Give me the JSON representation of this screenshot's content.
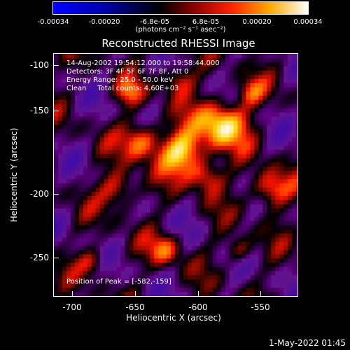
{
  "colorbar": {
    "tick_labels": [
      "-0.00034",
      "-0.00020",
      "-6.8e-05",
      "6.8e-05",
      "0.00020",
      "0.00034"
    ],
    "units_text": "(photons cm⁻² s⁻¹ asec⁻²)",
    "colors": [
      "#0000ff",
      "#000000",
      "#880000",
      "#ff2200",
      "#ffaa00",
      "#ffffff"
    ]
  },
  "title": "Reconstructed RHESSI Image",
  "info": {
    "line1": "14-Aug-2002 19:54:12.000 to 19:58:44.000",
    "line2": "Detectors: 3F 4F 5F 6F 7F 8F, Att 0",
    "line3": "Energy Range: 25.0 - 50.0 keV",
    "line4": "Clean     Total counts: 4.60E+03",
    "peak": "Position of Peak = [-582,-159]"
  },
  "axes": {
    "xlabel": "Heliocentric X (arcsec)",
    "ylabel": "Heliocentric Y (arcsec)",
    "x_ticks": [
      "-700",
      "-650",
      "-600",
      "-550"
    ],
    "y_ticks": [
      "-100",
      "-150",
      "-200",
      "-250"
    ]
  },
  "footer": "1-May-2022 01:45",
  "colors": {
    "background": "#000000",
    "axis": "#ffffff"
  }
}
